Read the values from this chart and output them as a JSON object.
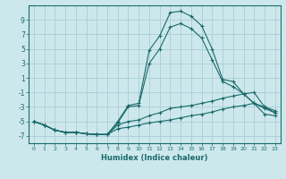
{
  "xlabel": "Humidex (Indice chaleur)",
  "background_color": "#cde8ec",
  "grid_color": "#aacdd4",
  "line_color": "#1a6b6b",
  "x_values": [
    0,
    1,
    2,
    3,
    4,
    5,
    6,
    7,
    8,
    9,
    10,
    11,
    12,
    13,
    14,
    15,
    16,
    17,
    18,
    19,
    20,
    21,
    22,
    23
  ],
  "series1": [
    -5.0,
    -5.5,
    -6.2,
    -6.5,
    -6.5,
    -6.7,
    -6.8,
    -6.8,
    -5.0,
    -2.8,
    -2.5,
    4.8,
    6.8,
    10.0,
    10.2,
    9.5,
    8.2,
    5.0,
    0.8,
    0.5,
    -1.2,
    -2.5,
    -3.2,
    -3.8
  ],
  "series2": [
    -5.0,
    -5.5,
    -6.2,
    -6.5,
    -6.5,
    -6.7,
    -6.8,
    -6.8,
    -5.2,
    -3.0,
    -2.8,
    3.0,
    5.0,
    8.0,
    8.5,
    7.8,
    6.5,
    3.5,
    0.5,
    -0.2,
    -1.2,
    -2.5,
    -3.0,
    -3.8
  ],
  "series3": [
    -5.0,
    -5.5,
    -6.2,
    -6.5,
    -6.5,
    -6.7,
    -6.8,
    -6.8,
    -5.5,
    -5.0,
    -4.8,
    -4.2,
    -3.8,
    -3.2,
    -3.0,
    -2.8,
    -2.5,
    -2.2,
    -1.8,
    -1.5,
    -1.2,
    -1.0,
    -3.0,
    -3.5
  ],
  "series4": [
    -5.0,
    -5.5,
    -6.2,
    -6.5,
    -6.5,
    -6.7,
    -6.8,
    -6.8,
    -6.0,
    -5.8,
    -5.5,
    -5.2,
    -5.0,
    -4.8,
    -4.5,
    -4.2,
    -4.0,
    -3.7,
    -3.3,
    -3.0,
    -2.8,
    -2.5,
    -4.0,
    -4.2
  ],
  "ylim": [
    -8,
    11
  ],
  "xlim": [
    -0.5,
    23.5
  ],
  "yticks": [
    -7,
    -5,
    -3,
    -1,
    1,
    3,
    5,
    7,
    9
  ],
  "xticks": [
    0,
    1,
    2,
    3,
    4,
    5,
    6,
    7,
    8,
    9,
    10,
    11,
    12,
    13,
    14,
    15,
    16,
    17,
    18,
    19,
    20,
    21,
    22,
    23
  ]
}
